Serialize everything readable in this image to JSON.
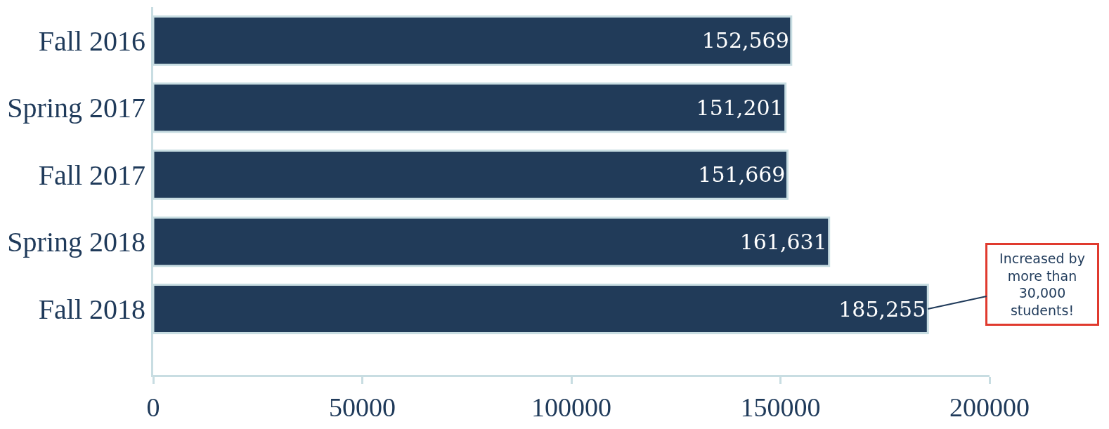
{
  "chart_data": {
    "type": "bar",
    "orientation": "horizontal",
    "categories": [
      "Fall 2016",
      "Spring 2017",
      "Fall 2017",
      "Spring 2018",
      "Fall 2018"
    ],
    "values": [
      152569,
      151201,
      151669,
      161631,
      185255
    ],
    "value_labels": [
      "152,569",
      "151,201",
      "151,669",
      "161,631",
      "185,255"
    ],
    "color": "#213b59",
    "xlim": [
      0,
      200000
    ],
    "xticks": [
      0,
      50000,
      100000,
      150000,
      200000
    ],
    "legend": false,
    "annotations": [
      {
        "text": "Increased by more than 30,000 students!",
        "x": 185255,
        "y": "Fall 2018"
      }
    ]
  }
}
